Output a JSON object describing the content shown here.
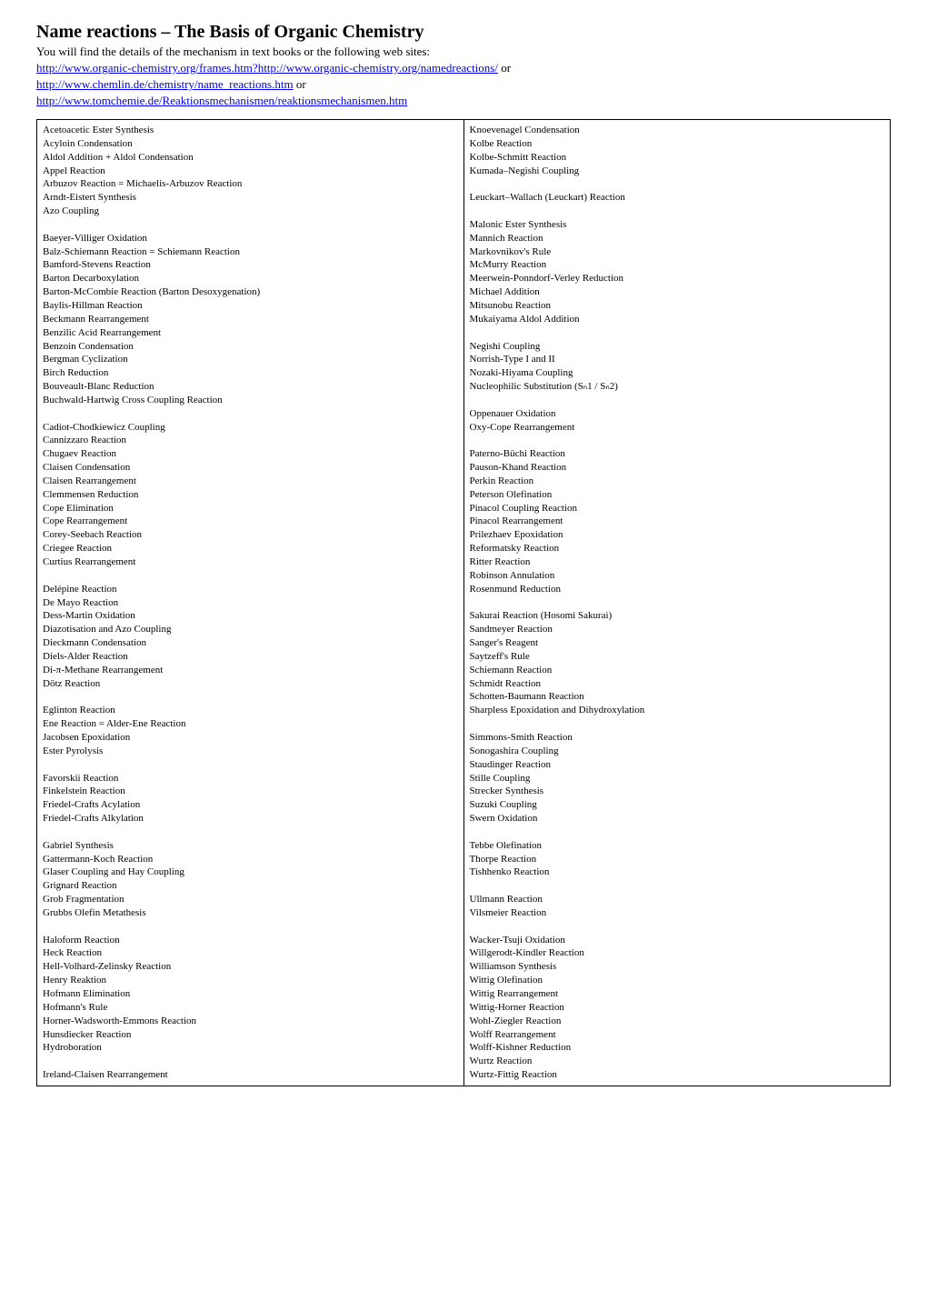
{
  "title": "Name reactions – The Basis of Organic Chemistry",
  "intro_line1": "You will find the details of the mechanism in text books or the following web sites:",
  "intro_line2_link": "http://www.organic-chemistry.org/frames.htm?http://www.organic-chemistry.org/namedreactions/",
  "intro_line2_tail": "  or",
  "intro_line3_link": "http://www.chemlin.de/chemistry/name_reactions.htm",
  "intro_line3_tail": " or",
  "intro_line4_link": "http://www.tomchemie.de/Reaktionsmechanismen/reaktionsmechanismen.htm",
  "table": {
    "left": "Acetoacetic Ester Synthesis\nAcyloin Condensation\nAldol Addition + Aldol Condensation\nAppel Reaction\nArbuzov Reaction = Michaelis-Arbuzov Reaction\nArndt-Eistert Synthesis\nAzo Coupling\n\nBaeyer-Villiger Oxidation\nBalz-Schiemann Reaction = Schiemann Reaction\nBamford-Stevens Reaction\nBarton Decarboxylation\nBarton-McCombie Reaction (Barton Desoxygenation)\nBaylis-Hillman Reaction\nBeckmann Rearrangement\nBenzilic Acid Rearrangement\nBenzoin Condensation\nBergman Cyclization\nBirch Reduction\nBouveault-Blanc Reduction\nBuchwald-Hartwig Cross Coupling Reaction\n\nCadiot-Chodkiewicz Coupling\nCannizzaro Reaction\nChugaev Reaction\nClaisen Condensation\nClaisen Rearrangement\nClemmensen Reduction\nCope Elimination\nCope Rearrangement\nCorey-Seebach Reaction\nCriegee Reaction\nCurtius Rearrangement\n\nDelépine Reaction\nDe Mayo Reaction\nDess-Martin Oxidation\nDiazotisation and Azo Coupling\nDieckmann Condensation\nDiels-Alder Reaction\nDi-π-Methane Rearrangement\nDötz Reaction\n\nEglinton Reaction\nEne Reaction = Alder-Ene Reaction\nJacobsen Epoxidation\nEster Pyrolysis\n\nFavorskii Reaction\nFinkelstein Reaction\nFriedel-Crafts Acylation\nFriedel-Crafts Alkylation\n\nGabriel Synthesis\nGattermann-Koch Reaction\nGlaser Coupling and Hay Coupling\nGrignard Reaction\nGrob Fragmentation\nGrubbs Olefin Metathesis\n\nHaloform Reaction\nHeck Reaction\nHell-Volhard-Zelinsky Reaction\nHenry Reaktion\nHofmann Elimination\nHofmann's Rule\nHorner-Wadsworth-Emmons Reaction\nHunsdiecker Reaction\nHydroboration\n\nIreland-Claisen Rearrangement\n",
    "right": "Knoevenagel Condensation\nKolbe Reaction\nKolbe-Schmitt Reaction\nKumada–Negishi Coupling\n\nLeuckart–Wallach (Leuckart) Reaction\n\nMalonic Ester Synthesis\nMannich Reaction\nMarkovnikov's Rule\nMcMurry Reaction\nMeerwein-Ponndorf-Verley Reduction\nMichael Addition\nMitsunobu Reaction\nMukaiyama Aldol Addition\n\nNegishi Coupling\nNorrish-Type I and II\nNozaki-Hiyama Coupling\nNucleophilic Substitution (Sₙ1 / Sₙ2)\n\nOppenauer Oxidation\nOxy-Cope Rearrangement\n\nPaterno-Büchi Reaction\nPauson-Khand Reaction\nPerkin Reaction\nPeterson Olefination\nPinacol Coupling Reaction\nPinacol Rearrangement\nPrilezhaev Epoxidation\nReformatsky Reaction\nRitter Reaction\nRobinson Annulation\nRosenmund Reduction\n\nSakurai Reaction (Hosomi Sakurai)\nSandmeyer Reaction\nSanger's Reagent\nSaytzeff's Rule\nSchiemann Reaction\nSchmidt Reaction\nSchotten-Baumann Reaction\nSharpless Epoxidation and Dihydroxylation\n\nSimmons-Smith Reaction\nSonogashira Coupling\nStaudinger Reaction\nStille Coupling\nStrecker Synthesis\nSuzuki Coupling\nSwern Oxidation\n\nTebbe Olefination\nThorpe Reaction\nTishhenko Reaction\n\nUllmann Reaction\nVilsmeier Reaction\n\nWacker-Tsuji Oxidation\nWillgerodt-Kindler Reaction\nWilliamson Synthesis\nWittig Olefination\nWittig Rearrangement\nWittig-Horner Reaction\nWohl-Ziegler Reaction\nWolff Rearrangement\nWolff-Kishner Reduction\nWurtz Reaction\nWurtz-Fittig Reaction\n"
  }
}
